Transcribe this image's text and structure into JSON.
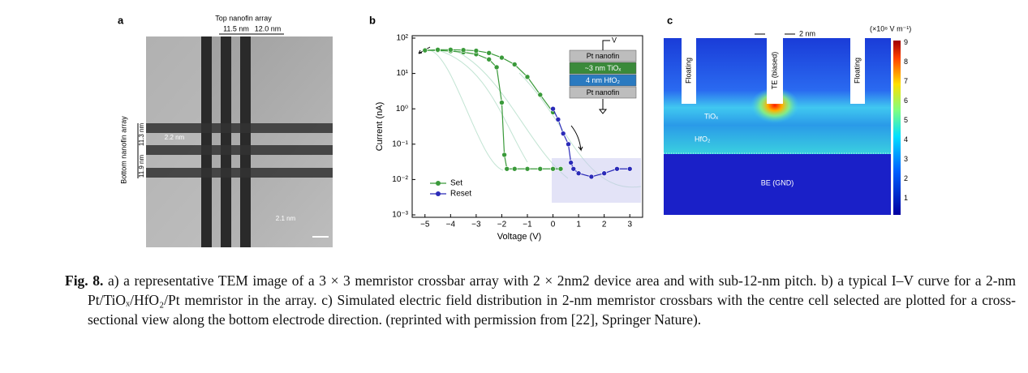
{
  "panel_a": {
    "label": "a",
    "title": "Top nanofin array",
    "pitch_top_1": "11.5 nm",
    "pitch_top_2": "12.0 nm",
    "side_label": "Bottom nanofin array",
    "pitch_side_1": "11.9 nm",
    "pitch_side_2": "11.3 nm",
    "gap": "2.2 nm",
    "width": "2.1 nm"
  },
  "chart_data": {
    "type": "line",
    "label": "b",
    "xlabel": "Voltage (V)",
    "ylabel": "Current (nA)",
    "ylog": true,
    "xlim": [
      -5.5,
      3.5
    ],
    "xticks": [
      {
        "value": -5,
        "label": "−5"
      },
      {
        "value": -4,
        "label": "−4"
      },
      {
        "value": -3,
        "label": "−3"
      },
      {
        "value": -2,
        "label": "−2"
      },
      {
        "value": -1,
        "label": "−1"
      },
      0,
      1,
      2,
      3
    ],
    "ylim": [
      0.001,
      100
    ],
    "yticks": [
      {
        "value": 0.001,
        "label": "10⁻³"
      },
      {
        "value": 0.01,
        "label": "10⁻²"
      },
      {
        "value": 0.1,
        "label": "10⁻¹"
      },
      {
        "value": 1,
        "label": "10⁰"
      },
      {
        "value": 10,
        "label": "10¹"
      },
      {
        "value": 100,
        "label": "10²"
      }
    ],
    "series": [
      {
        "name": "Set",
        "color": "#3a9a3a",
        "x": [
          0.3,
          0,
          -0.5,
          -1,
          -1.5,
          -1.8,
          -1.9,
          -2,
          -2.2,
          -2.5,
          -3,
          -3.5,
          -4,
          -4.5,
          -5,
          -4.5,
          -4,
          -3.5,
          -3,
          -2.5,
          -2,
          -1.5,
          -1,
          -0.5,
          0
        ],
        "values": [
          0.02,
          0.02,
          0.02,
          0.02,
          0.02,
          0.02,
          0.05,
          1.5,
          15,
          25,
          35,
          40,
          43,
          45,
          45,
          47,
          47,
          46,
          44,
          38,
          28,
          18,
          8,
          2.5,
          0.8
        ]
      },
      {
        "name": "Reset",
        "color": "#2a2ab8",
        "x": [
          0,
          0.2,
          0.4,
          0.6,
          0.7,
          0.8,
          1,
          1.5,
          2,
          2.5,
          3
        ],
        "values": [
          1,
          0.5,
          0.2,
          0.1,
          0.03,
          0.02,
          0.015,
          0.012,
          0.015,
          0.02,
          0.02
        ]
      }
    ],
    "stack": [
      "Pt nanofin",
      "~3 nm TiOₓ",
      "4 nm HfO₂",
      "Pt nanofin"
    ],
    "stack_terminal": "V"
  },
  "panel_c": {
    "label": "c",
    "te_width": "2 nm",
    "unit": "(×10⁸ V m⁻¹)",
    "left": "Floating",
    "center": "TE (biased)",
    "right": "Floating",
    "layer1": "TiOₓ",
    "layer2": "HfO₂",
    "bottom": "BE (GND)",
    "colorbar_ticks": [
      1,
      2,
      3,
      4,
      5,
      6,
      7,
      8,
      9
    ]
  },
  "caption": {
    "label": "Fig. 8.",
    "text": "a) a representative TEM image of a 3 × 3 memristor crossbar array with 2 × 2nm2 device area and with sub-12-nm pitch. b) a typical I–V curve for a 2-nm Pt/TiOₓ/HfO₂/Pt memristor in the array. c) Simulated electric field distribution in 2-nm memristor crossbars with the centre cell selected are plotted for a cross-sectional view along the bottom electrode direction. (reprinted with permission from [22], Springer Nature)."
  }
}
